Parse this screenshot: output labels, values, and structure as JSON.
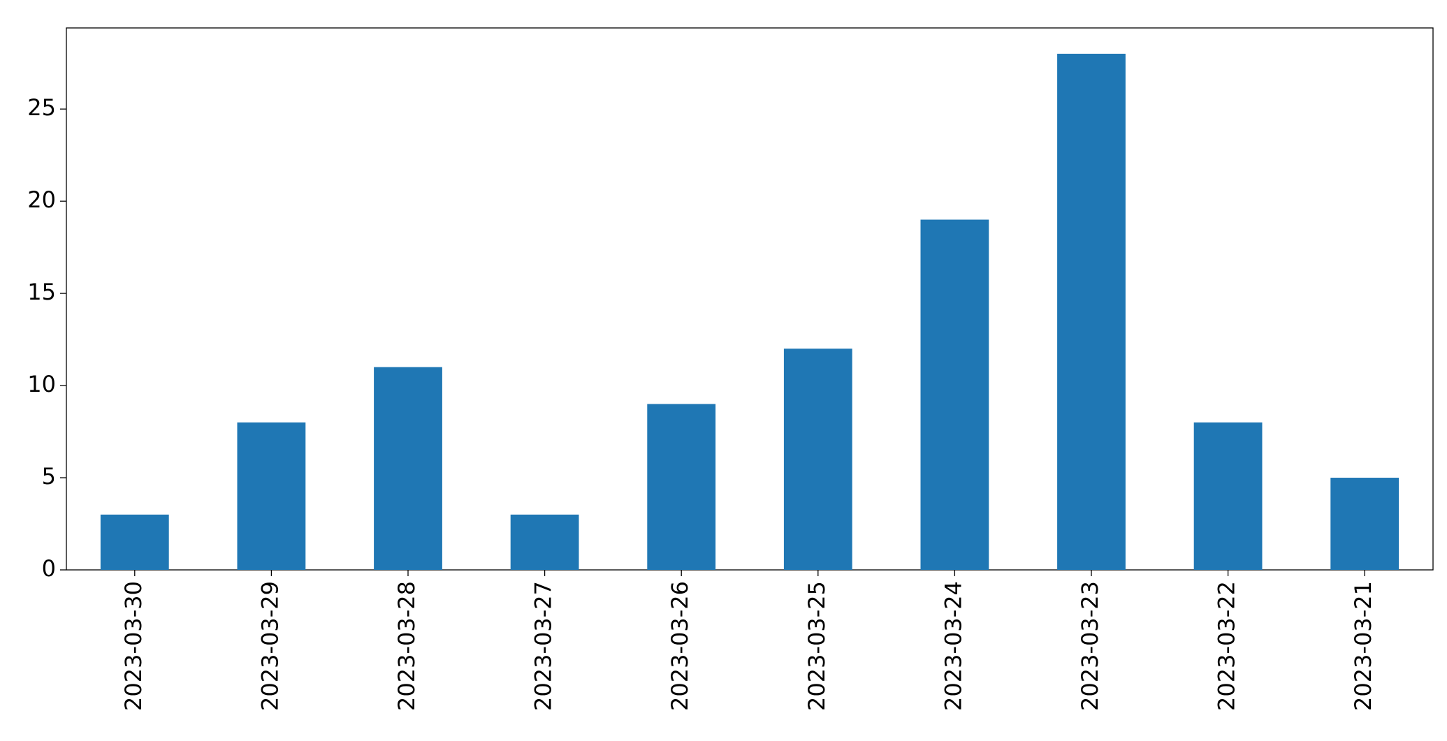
{
  "chart_data": {
    "type": "bar",
    "categories": [
      "2023-03-30",
      "2023-03-29",
      "2023-03-28",
      "2023-03-27",
      "2023-03-26",
      "2023-03-25",
      "2023-03-24",
      "2023-03-23",
      "2023-03-22",
      "2023-03-21"
    ],
    "values": [
      3,
      8,
      11,
      3,
      9,
      12,
      19,
      28,
      8,
      5
    ],
    "color": "#1f77b4",
    "ylim": [
      0,
      29.4
    ],
    "yticks": [
      0,
      5,
      10,
      15,
      20,
      25
    ],
    "grid": false
  }
}
